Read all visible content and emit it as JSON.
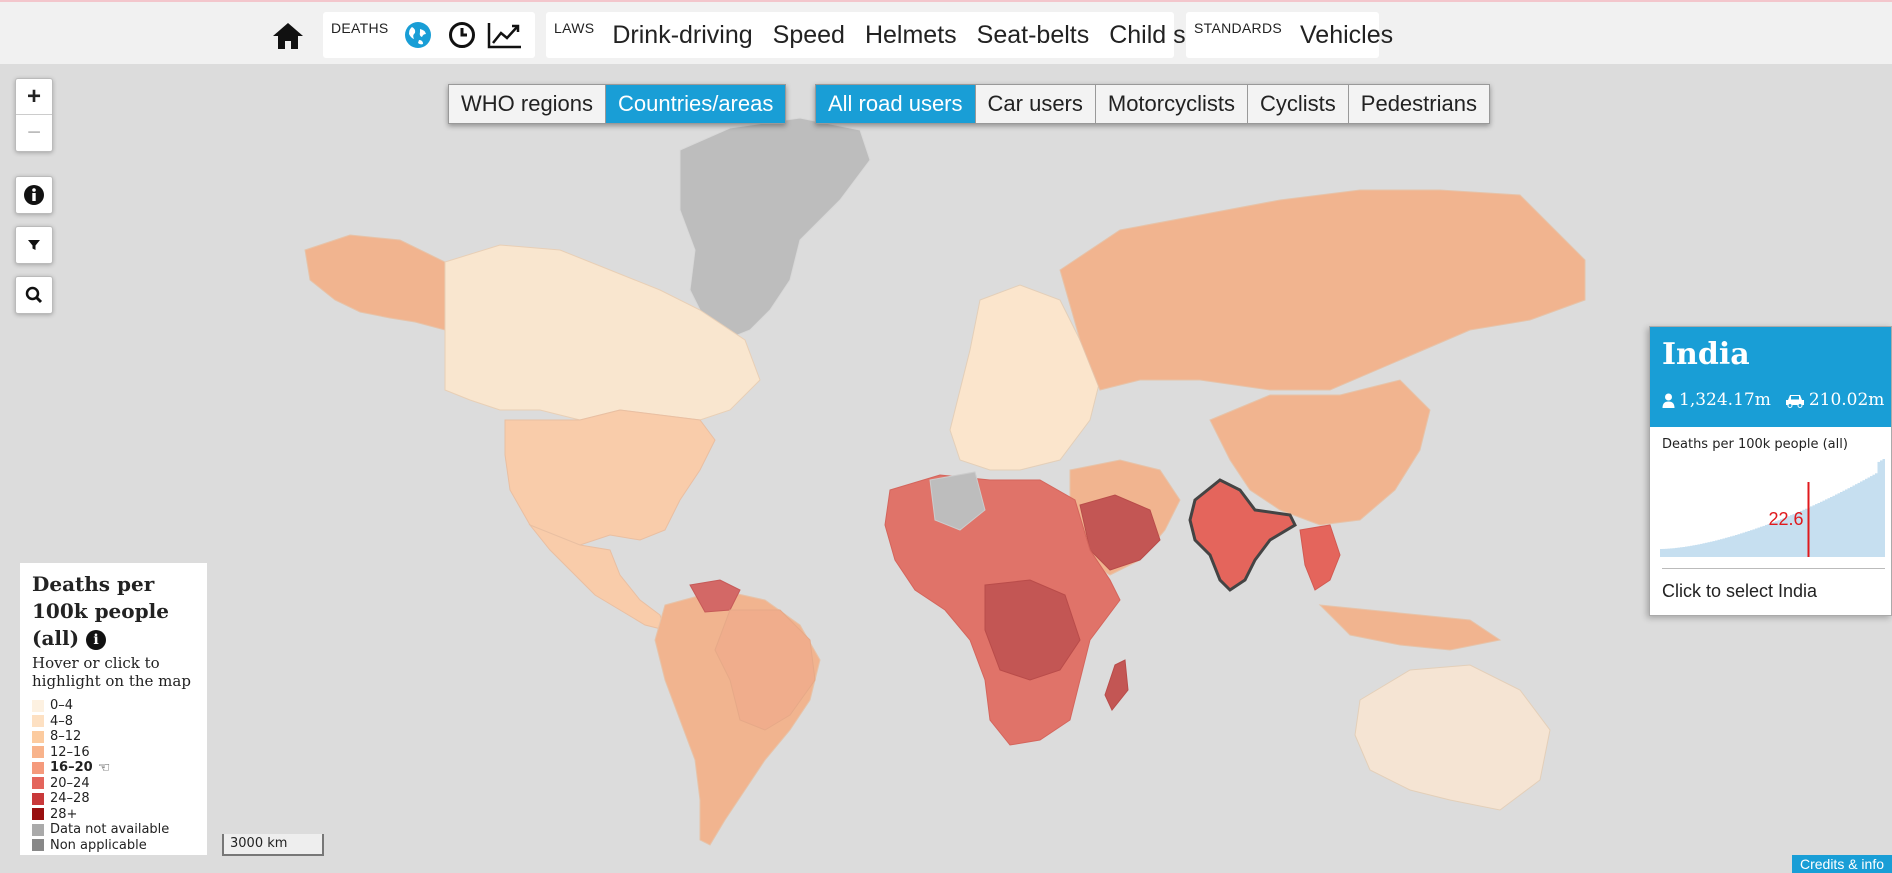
{
  "nav": {
    "home_icon": "home-icon",
    "deaths_label": "DEATHS",
    "deaths_icons": [
      "globe-icon",
      "clock-icon",
      "trend-chart-icon"
    ],
    "laws_label": "LAWS",
    "laws_items": [
      "Drink-driving",
      "Speed",
      "Helmets",
      "Seat-belts",
      "Child seats"
    ],
    "standards_label": "STANDARDS",
    "standards_items": [
      "Vehicles"
    ]
  },
  "view_toggle": {
    "items": [
      "WHO regions",
      "Countries/areas"
    ],
    "active": 1
  },
  "user_toggle": {
    "items": [
      "All road users",
      "Car users",
      "Motorcyclists",
      "Cyclists",
      "Pedestrians"
    ],
    "active": 0
  },
  "controls": {
    "zoom_in": "+",
    "zoom_out": "−",
    "icons": [
      "info-icon",
      "filter-icon",
      "search-icon"
    ]
  },
  "legend": {
    "title": "Deaths per 100k people (all)",
    "subtitle": "Hover or click to highlight on the map",
    "items": [
      {
        "label": "0–4",
        "color": "#fdf1e1"
      },
      {
        "label": "4–8",
        "color": "#fde0c2"
      },
      {
        "label": "8–12",
        "color": "#fccb9f"
      },
      {
        "label": "12–16",
        "color": "#f8b38b"
      },
      {
        "label": "16–20",
        "color": "#f59a7c"
      },
      {
        "label": "20–24",
        "color": "#e4655c"
      },
      {
        "label": "24–28",
        "color": "#c9393a"
      },
      {
        "label": "28+",
        "color": "#990f10"
      },
      {
        "label": "Data not available",
        "color": "#aaaaaa"
      },
      {
        "label": "Non applicable",
        "color": "#888888"
      }
    ],
    "highlighted": 4
  },
  "scale": "3000 km",
  "panel": {
    "country": "India",
    "population": "1,324.17m",
    "vehicles": "210.02m",
    "chart_label": "Deaths per 100k people (all)",
    "value": "22.6",
    "value_fraction": 0.66,
    "cta": "Click to select India"
  },
  "credits": "Credits & info",
  "colors": {
    "accent": "#199ed6",
    "marker": "#e0191d",
    "ocean": "#dcdcdc"
  }
}
